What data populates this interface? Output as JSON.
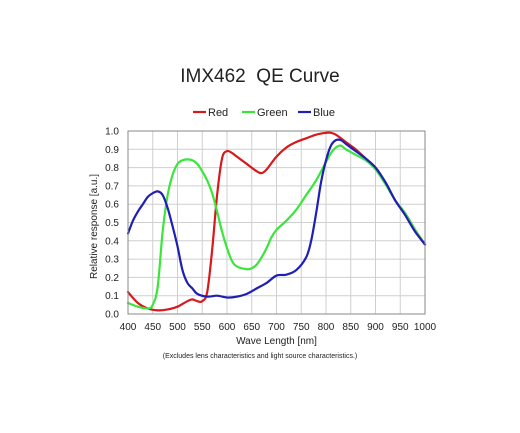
{
  "chart_data": {
    "type": "line",
    "title": "IMX462  QE Curve",
    "xlabel": "Wave Length [nm]",
    "ylabel": "Relative response [a.u.]",
    "xlim": [
      400,
      1000
    ],
    "ylim": [
      0,
      1.0
    ],
    "xticks": [
      "400",
      "450",
      "500",
      "550",
      "600",
      "650",
      "700",
      "750",
      "800",
      "850",
      "900",
      "950",
      "1000"
    ],
    "yticks": [
      "0.0",
      "0.1",
      "0.2",
      "0.3",
      "0.4",
      "0.5",
      "0.6",
      "0.7",
      "0.8",
      "0.9",
      "1.0"
    ],
    "grid": true,
    "legend_position": "top",
    "note": "(Excludes lens characteristics and light source characteristics.)",
    "series": [
      {
        "name": "Red",
        "color": "#d7191c",
        "x": [
          400,
          420,
          440,
          460,
          480,
          500,
          520,
          530,
          540,
          550,
          560,
          570,
          580,
          590,
          600,
          610,
          620,
          640,
          660,
          670,
          680,
          700,
          720,
          740,
          760,
          780,
          800,
          810,
          820,
          830,
          840,
          850,
          860,
          880,
          900,
          920,
          940,
          960,
          980,
          1000
        ],
        "y": [
          0.12,
          0.06,
          0.03,
          0.02,
          0.025,
          0.04,
          0.07,
          0.08,
          0.07,
          0.07,
          0.12,
          0.35,
          0.65,
          0.85,
          0.89,
          0.88,
          0.86,
          0.82,
          0.78,
          0.77,
          0.79,
          0.86,
          0.91,
          0.94,
          0.96,
          0.98,
          0.99,
          0.99,
          0.98,
          0.96,
          0.94,
          0.92,
          0.9,
          0.85,
          0.8,
          0.72,
          0.62,
          0.55,
          0.46,
          0.38
        ]
      },
      {
        "name": "Green",
        "color": "#39e639",
        "x": [
          400,
          420,
          440,
          450,
          460,
          470,
          480,
          490,
          500,
          510,
          520,
          530,
          540,
          550,
          560,
          570,
          580,
          590,
          600,
          610,
          620,
          640,
          650,
          660,
          670,
          680,
          690,
          700,
          720,
          740,
          760,
          780,
          800,
          810,
          820,
          830,
          840,
          860,
          880,
          900,
          920,
          940,
          960,
          980,
          1000
        ],
        "y": [
          0.06,
          0.04,
          0.03,
          0.05,
          0.15,
          0.45,
          0.65,
          0.76,
          0.82,
          0.84,
          0.845,
          0.84,
          0.82,
          0.78,
          0.73,
          0.66,
          0.56,
          0.45,
          0.36,
          0.29,
          0.26,
          0.245,
          0.25,
          0.27,
          0.31,
          0.36,
          0.42,
          0.46,
          0.51,
          0.57,
          0.65,
          0.73,
          0.83,
          0.88,
          0.91,
          0.92,
          0.9,
          0.87,
          0.84,
          0.79,
          0.71,
          0.62,
          0.55,
          0.46,
          0.38
        ]
      },
      {
        "name": "Blue",
        "color": "#1f1fb4",
        "x": [
          400,
          410,
          420,
          430,
          440,
          450,
          460,
          470,
          480,
          490,
          500,
          510,
          520,
          530,
          540,
          560,
          580,
          600,
          620,
          640,
          660,
          680,
          700,
          720,
          740,
          760,
          770,
          780,
          790,
          800,
          810,
          820,
          830,
          840,
          860,
          880,
          900,
          920,
          940,
          960,
          980,
          1000
        ],
        "y": [
          0.44,
          0.51,
          0.56,
          0.6,
          0.64,
          0.66,
          0.67,
          0.65,
          0.58,
          0.48,
          0.37,
          0.24,
          0.17,
          0.14,
          0.11,
          0.095,
          0.1,
          0.09,
          0.095,
          0.11,
          0.14,
          0.17,
          0.21,
          0.215,
          0.24,
          0.31,
          0.4,
          0.55,
          0.72,
          0.84,
          0.92,
          0.95,
          0.95,
          0.93,
          0.89,
          0.85,
          0.8,
          0.72,
          0.62,
          0.54,
          0.45,
          0.38
        ]
      }
    ]
  }
}
